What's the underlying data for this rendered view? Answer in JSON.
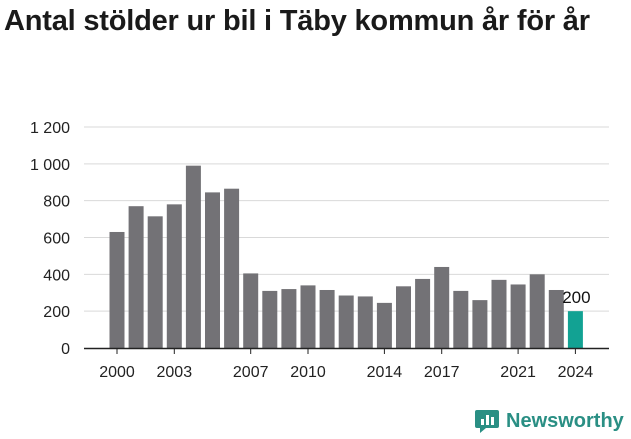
{
  "chart_data": {
    "type": "bar",
    "title": "Antal stölder ur bil i Täby kommun år för år",
    "xlabel": "",
    "ylabel": "",
    "categories": [
      "2000",
      "2001",
      "2002",
      "2003",
      "2004",
      "2005",
      "2006",
      "2007",
      "2008",
      "2009",
      "2010",
      "2011",
      "2012",
      "2013",
      "2014",
      "2015",
      "2016",
      "2017",
      "2018",
      "2019",
      "2020",
      "2021",
      "2022",
      "2023",
      "2024"
    ],
    "values": [
      630,
      770,
      715,
      780,
      990,
      845,
      865,
      405,
      310,
      320,
      340,
      315,
      285,
      280,
      245,
      335,
      375,
      440,
      310,
      260,
      370,
      345,
      400,
      315,
      200
    ],
    "x_tick_labels": [
      "2000",
      "2003",
      "2007",
      "2010",
      "2014",
      "2017",
      "2021",
      "2024"
    ],
    "y_ticks": [
      0,
      200,
      400,
      600,
      800,
      1000,
      1200
    ],
    "y_tick_labels": [
      "0",
      "200",
      "400",
      "600",
      "800",
      "1 000",
      "1 200"
    ],
    "ylim": [
      0,
      1200
    ],
    "grid": true,
    "colors": {
      "bar": "#737276",
      "highlight": "#12a293",
      "grid": "#d9d9d9"
    },
    "highlight_index": 24,
    "data_labels": [
      {
        "index": 24,
        "text": "200"
      }
    ]
  },
  "brand": {
    "name": "Newsworthy",
    "icon": "newsworthy-logo-icon"
  }
}
